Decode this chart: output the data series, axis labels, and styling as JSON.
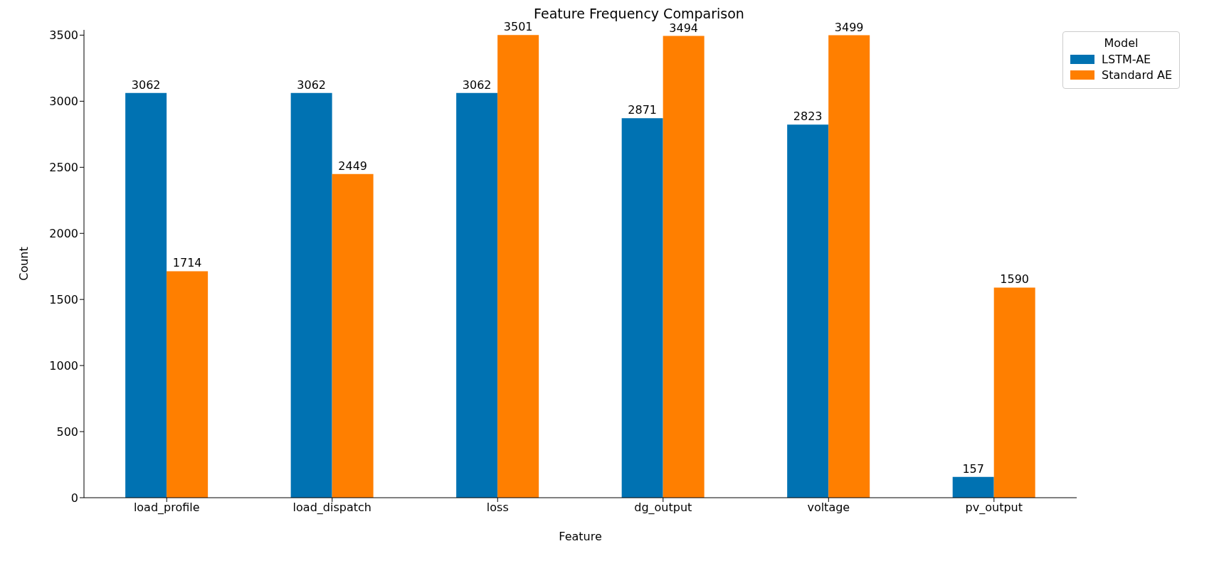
{
  "chart_data": {
    "type": "bar",
    "title": "Feature Frequency Comparison",
    "xlabel": "Feature",
    "ylabel": "Count",
    "legend_title": "Model",
    "categories": [
      "load_profile",
      "load_dispatch",
      "loss",
      "dg_output",
      "voltage",
      "pv_output"
    ],
    "series": [
      {
        "name": "LSTM-AE",
        "color": "#0072b2",
        "values": [
          3062,
          3062,
          3062,
          2871,
          2823,
          157
        ]
      },
      {
        "name": "Standard AE",
        "color": "#ff7f00",
        "values": [
          1714,
          2449,
          3501,
          3494,
          3499,
          1590
        ]
      }
    ],
    "ylim": [
      0,
      3540
    ],
    "yticks": [
      0,
      500,
      1000,
      1500,
      2000,
      2500,
      3000,
      3500
    ],
    "grid": false,
    "legend": "top right",
    "data_labels": true
  }
}
